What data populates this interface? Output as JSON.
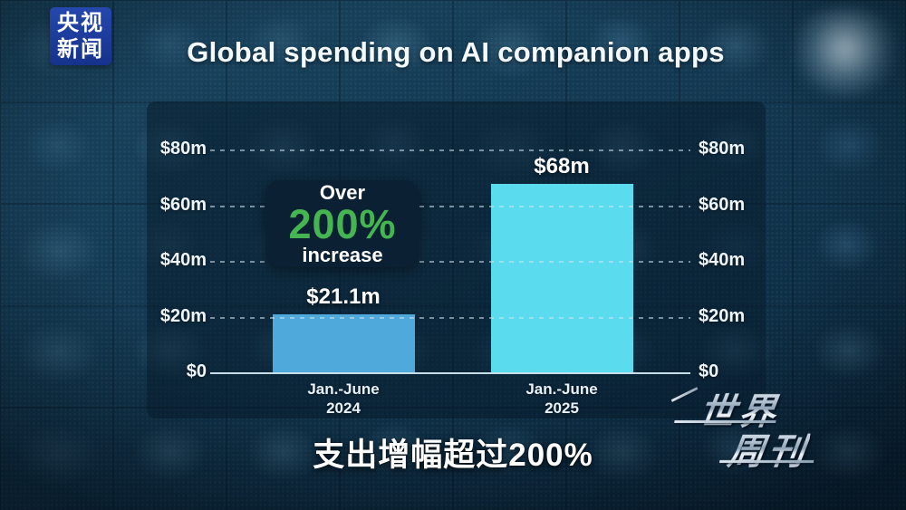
{
  "branding": {
    "cctv_logo_line1": "央视",
    "cctv_logo_line2": "新闻",
    "watermark_line1": "世界",
    "watermark_line2": "周刊"
  },
  "chart_data": {
    "type": "bar",
    "title": "Global spending on AI companion apps",
    "categories": [
      "Jan.-June 2024",
      "Jan.-June 2025"
    ],
    "category_lines": [
      [
        "Jan.-June",
        "2024"
      ],
      [
        "Jan.-June",
        "2025"
      ]
    ],
    "values": [
      21.1,
      68
    ],
    "bar_labels": [
      "$21.1m",
      "$68m"
    ],
    "bar_colors": [
      "#4fa9db",
      "#5bdcee"
    ],
    "ylim": [
      0,
      80
    ],
    "yticks": [
      {
        "value": 0,
        "label": "$0"
      },
      {
        "value": 20,
        "label": "$20m"
      },
      {
        "value": 40,
        "label": "$40m"
      },
      {
        "value": 60,
        "label": "$60m"
      },
      {
        "value": 80,
        "label": "$80m"
      }
    ],
    "grid": "dashed horizontal, labels on both sides",
    "legend": "none",
    "annotation": {
      "line1": "Over",
      "line2": "200%",
      "line3": "increase",
      "accent_color": "#45b552",
      "background_color": "#0b2133"
    }
  },
  "caption": {
    "text": "支出增幅超过200%"
  }
}
